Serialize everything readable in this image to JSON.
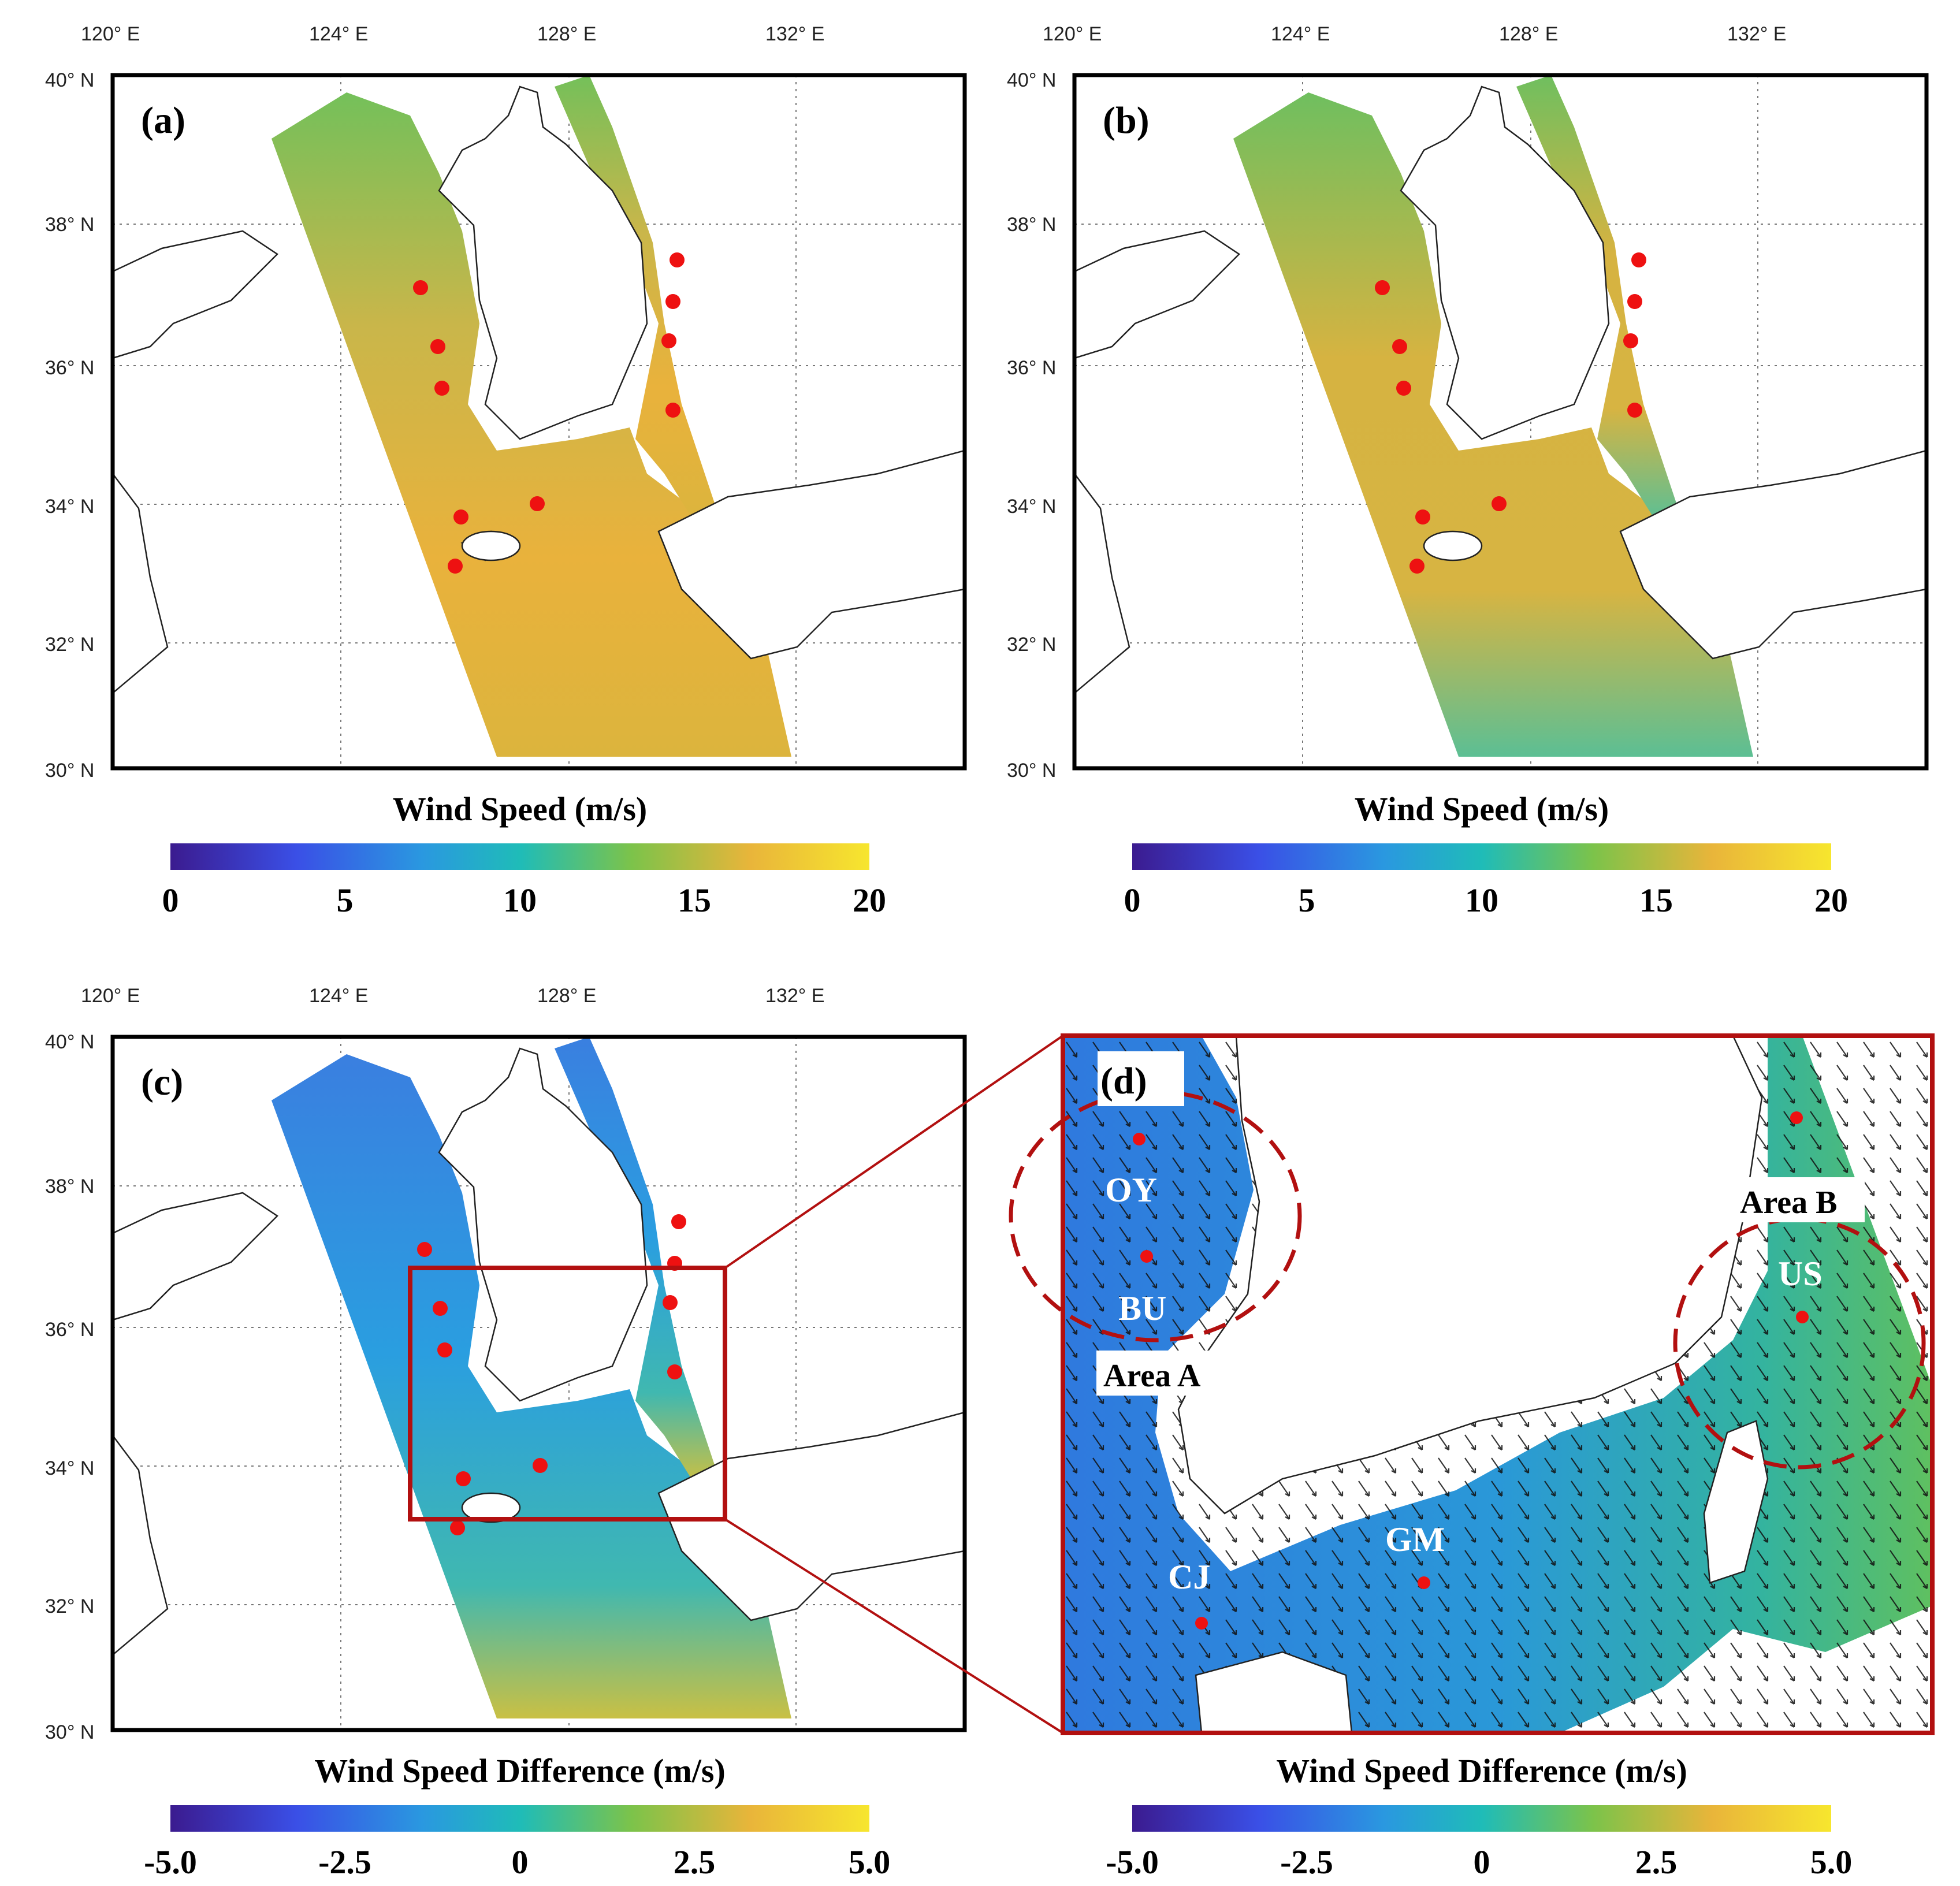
{
  "panels": [
    {
      "label": "(a)",
      "colorbar_title": "Wind Speed (m/s)",
      "ticks": [
        "0",
        "5",
        "10",
        "15",
        "20"
      ]
    },
    {
      "label": "(b)",
      "colorbar_title": "Wind Speed (m/s)",
      "ticks": [
        "0",
        "5",
        "10",
        "15",
        "20"
      ]
    },
    {
      "label": "(c)",
      "colorbar_title": "Wind Speed Difference (m/s)",
      "ticks": [
        "-5.0",
        "-2.5",
        "0",
        "2.5",
        "5.0"
      ]
    },
    {
      "label": "(d)",
      "colorbar_title": "Wind Speed Difference (m/s)",
      "ticks": [
        "-5.0",
        "-2.5",
        "0",
        "2.5",
        "5.0"
      ]
    }
  ],
  "axes": {
    "lon_ticks": [
      "120° E",
      "124° E",
      "128° E",
      "132° E"
    ],
    "lat_ticks": [
      "40° N",
      "38° N",
      "36° N",
      "34° N",
      "32° N",
      "30° N"
    ],
    "lon_range": [
      120,
      135
    ],
    "lat_range": [
      30,
      40
    ]
  },
  "zoom_panel": {
    "sites": [
      "OY",
      "BU",
      "CJ",
      "GM",
      "US"
    ],
    "areas": [
      "Area A",
      "Area B"
    ]
  },
  "colors": {
    "colormap": [
      "#3b1b8f",
      "#3a4fe6",
      "#2a98e0",
      "#1fbcb8",
      "#7cc34a",
      "#e9b53a",
      "#f7e62e"
    ],
    "station_marker": "#ee1111",
    "highlight_box": "#b21010",
    "area_circle": "#b21010"
  }
}
